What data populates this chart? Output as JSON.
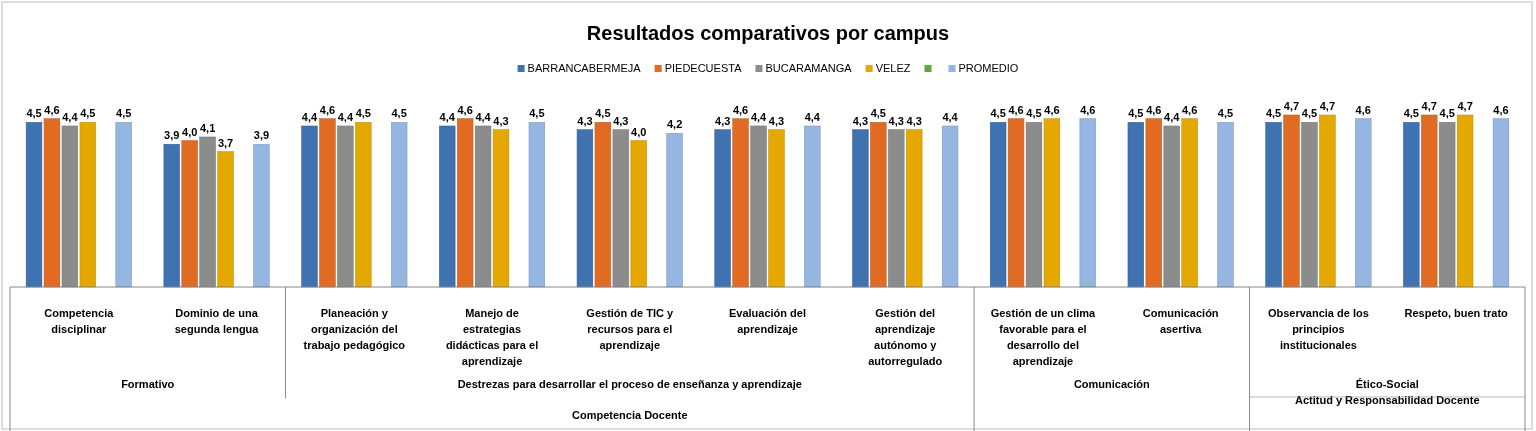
{
  "chart_data": {
    "type": "bar",
    "title": "Resultados comparativos por campus",
    "legend": "top",
    "categories": [
      "Competencia disciplinar",
      "Dominio de una segunda lengua",
      "Planeación y organización del trabajo pedagógico",
      "Manejo de estrategias didácticas para el aprendizaje",
      "Gestión de TIC y recursos para el aprendizaje",
      "Evaluación del aprendizaje",
      "Gestión del aprendizaje autónomo y autorregulado",
      "Gestión de un clima favorable para el desarrollo del aprendizaje",
      "Comunicación asertiva",
      "Observancia de los principios institucionales",
      "Respeto, buen trato"
    ],
    "annotations": [
      "Formativo",
      "Destrezas para desarrollar el proceso de enseñanza y aprendizaje",
      "Comunicación",
      "Ético-Social",
      "Competencia Docente",
      "Actitud y Responsabilidad Docente"
    ],
    "series": [
      {
        "name": "BARRANCABERMEJA",
        "color": "#3f72b0",
        "values": [
          4.5,
          3.9,
          4.4,
          4.4,
          4.3,
          4.3,
          4.3,
          4.5,
          4.5,
          4.5,
          4.5
        ],
        "value_labels": [
          "4,5",
          "3,9",
          "4,4",
          "4,4",
          "4,3",
          "4,3",
          "4,3",
          "4,5",
          "4,5",
          "4,5",
          "4,5"
        ]
      },
      {
        "name": "PIEDECUESTA",
        "color": "#e26b24",
        "values": [
          4.6,
          4.0,
          4.6,
          4.6,
          4.5,
          4.6,
          4.5,
          4.6,
          4.6,
          4.7,
          4.7
        ],
        "value_labels": [
          "4,6",
          "4,0",
          "4,6",
          "4,6",
          "4,5",
          "4,6",
          "4,5",
          "4,6",
          "4,6",
          "4,7",
          "4,7"
        ]
      },
      {
        "name": "BUCARAMANGA",
        "color": "#8c8c8c",
        "values": [
          4.4,
          4.1,
          4.4,
          4.4,
          4.3,
          4.4,
          4.3,
          4.5,
          4.4,
          4.5,
          4.5
        ],
        "value_labels": [
          "4,4",
          "4,1",
          "4,4",
          "4,4",
          "4,3",
          "4,4",
          "4,3",
          "4,5",
          "4,4",
          "4,5",
          "4,5"
        ]
      },
      {
        "name": "VELEZ",
        "color": "#e5a800",
        "values": [
          4.5,
          3.7,
          4.5,
          4.3,
          4.0,
          4.3,
          4.3,
          4.6,
          4.6,
          4.7,
          4.7
        ],
        "value_labels": [
          "4,5",
          "3,7",
          "4,5",
          "4,3",
          "4,0",
          "4,3",
          "4,3",
          "4,6",
          "4,6",
          "4,7",
          "4,7"
        ]
      },
      {
        "color": "#5fa83a",
        "values": [
          null,
          null,
          null,
          null,
          null,
          null,
          null,
          null,
          null,
          null,
          null
        ]
      },
      {
        "name": "PROMEDIO",
        "color": "#95b6e0",
        "values": [
          4.5,
          3.9,
          4.5,
          4.5,
          4.2,
          4.4,
          4.4,
          4.6,
          4.5,
          4.6,
          4.6
        ],
        "value_labels": [
          "4,5",
          "3,9",
          "4,5",
          "4,5",
          "4,2",
          "4,4",
          "4,4",
          "4,6",
          "4,5",
          "4,6",
          "4,6"
        ]
      }
    ]
  }
}
